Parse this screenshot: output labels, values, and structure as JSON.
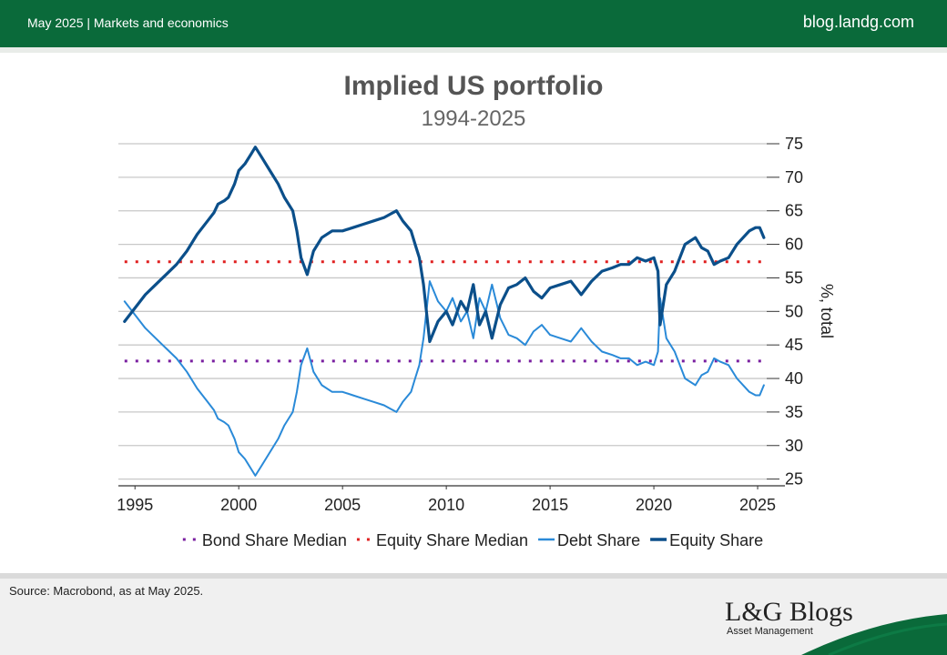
{
  "header": {
    "date_section": "May 2025 | Markets and economics",
    "site": "blog.landg.com"
  },
  "footer": {
    "source": "Source: Macrobond, as at May 2025.",
    "logo_main": "L&G Blogs",
    "logo_sub": "Asset Management"
  },
  "colors": {
    "brand_green": "#0a6a3a",
    "debt": "#2a8ad8",
    "equity": "#0b4f8a",
    "bond_median": "#7a1fa0",
    "equity_median": "#e02020"
  },
  "chart_data": {
    "type": "line",
    "title": "Implied US portfolio",
    "subtitle": "1994-2025",
    "ylabel": "%, total",
    "xlabel": "",
    "xlim": [
      1994.2,
      2025.7
    ],
    "ylim": [
      24,
      75
    ],
    "xticks": [
      1995,
      2000,
      2005,
      2010,
      2015,
      2020,
      2025
    ],
    "yticks": [
      25,
      30,
      35,
      40,
      45,
      50,
      55,
      60,
      65,
      70,
      75
    ],
    "grid": true,
    "legend_position": "bottom",
    "series": [
      {
        "name": "Bond Share Median",
        "style": "dotted",
        "color": "#7a1fa0",
        "x": [
          1994.5,
          2025.3
        ],
        "y": [
          42.6,
          42.6
        ]
      },
      {
        "name": "Equity Share Median",
        "style": "dotted",
        "color": "#e02020",
        "x": [
          1994.5,
          2025.3
        ],
        "y": [
          57.4,
          57.4
        ]
      },
      {
        "name": "Debt Share",
        "style": "solid",
        "color": "#2a8ad8",
        "x": [
          1994.5,
          1995.0,
          1995.5,
          1996.0,
          1996.5,
          1997.0,
          1997.5,
          1998.0,
          1998.5,
          1998.8,
          1999.0,
          1999.3,
          1999.5,
          1999.8,
          2000.0,
          2000.3,
          2000.6,
          2000.8,
          2001.1,
          2001.5,
          2001.9,
          2002.2,
          2002.6,
          2002.8,
          2003.0,
          2003.3,
          2003.6,
          2004.0,
          2004.5,
          2005.0,
          2005.5,
          2006.0,
          2006.5,
          2007.0,
          2007.3,
          2007.6,
          2007.9,
          2008.3,
          2008.5,
          2008.7,
          2008.9,
          2009.2,
          2009.6,
          2010.0,
          2010.3,
          2010.7,
          2011.0,
          2011.3,
          2011.6,
          2011.9,
          2012.2,
          2012.6,
          2013.0,
          2013.4,
          2013.8,
          2014.2,
          2014.6,
          2015.0,
          2015.5,
          2016.0,
          2016.5,
          2017.0,
          2017.5,
          2018.0,
          2018.4,
          2018.8,
          2019.2,
          2019.6,
          2020.0,
          2020.2,
          2020.3,
          2020.6,
          2021.0,
          2021.5,
          2022.0,
          2022.3,
          2022.6,
          2022.9,
          2023.2,
          2023.6,
          2024.0,
          2024.3,
          2024.6,
          2024.9,
          2025.1,
          2025.3
        ],
        "y": [
          51.5,
          49.5,
          47.5,
          46,
          44.5,
          43,
          41,
          38.5,
          36.5,
          35.3,
          34,
          33.5,
          33,
          31,
          29,
          28,
          26.5,
          25.5,
          27,
          29,
          31,
          33,
          35,
          38,
          42,
          44.5,
          41,
          39,
          38,
          38,
          37.5,
          37,
          36.5,
          36,
          35.5,
          35,
          36.5,
          38,
          40,
          42,
          46,
          54.5,
          51.5,
          50,
          52,
          48.5,
          50,
          46,
          52,
          50,
          54,
          49,
          46.5,
          46,
          45,
          47,
          48,
          46.5,
          46,
          45.5,
          47.5,
          45.5,
          44,
          43.5,
          43,
          43,
          42,
          42.5,
          42,
          44,
          52,
          46,
          44,
          40,
          39,
          40.5,
          41,
          43,
          42.5,
          42,
          40,
          39,
          38,
          37.5,
          37.5,
          39
        ]
      },
      {
        "name": "Equity Share",
        "style": "solid",
        "color": "#0b4f8a",
        "x": [
          1994.5,
          1995.0,
          1995.5,
          1996.0,
          1996.5,
          1997.0,
          1997.5,
          1998.0,
          1998.5,
          1998.8,
          1999.0,
          1999.3,
          1999.5,
          1999.8,
          2000.0,
          2000.3,
          2000.6,
          2000.8,
          2001.1,
          2001.5,
          2001.9,
          2002.2,
          2002.6,
          2002.8,
          2003.0,
          2003.3,
          2003.6,
          2004.0,
          2004.5,
          2005.0,
          2005.5,
          2006.0,
          2006.5,
          2007.0,
          2007.3,
          2007.6,
          2007.9,
          2008.3,
          2008.5,
          2008.7,
          2008.9,
          2009.2,
          2009.6,
          2010.0,
          2010.3,
          2010.7,
          2011.0,
          2011.3,
          2011.6,
          2011.9,
          2012.2,
          2012.6,
          2013.0,
          2013.4,
          2013.8,
          2014.2,
          2014.6,
          2015.0,
          2015.5,
          2016.0,
          2016.5,
          2017.0,
          2017.5,
          2018.0,
          2018.4,
          2018.8,
          2019.2,
          2019.6,
          2020.0,
          2020.2,
          2020.3,
          2020.6,
          2021.0,
          2021.5,
          2022.0,
          2022.3,
          2022.6,
          2022.9,
          2023.2,
          2023.6,
          2024.0,
          2024.3,
          2024.6,
          2024.9,
          2025.1,
          2025.3
        ],
        "y": [
          48.5,
          50.5,
          52.5,
          54,
          55.5,
          57,
          59,
          61.5,
          63.5,
          64.7,
          66,
          66.5,
          67,
          69,
          71,
          72,
          73.5,
          74.5,
          73,
          71,
          69,
          67,
          65,
          62,
          58,
          55.5,
          59,
          61,
          62,
          62,
          62.5,
          63,
          63.5,
          64,
          64.5,
          65,
          63.5,
          62,
          60,
          58,
          54,
          45.5,
          48.5,
          50,
          48,
          51.5,
          50,
          54,
          48,
          50,
          46,
          51,
          53.5,
          54,
          55,
          53,
          52,
          53.5,
          54,
          54.5,
          52.5,
          54.5,
          56,
          56.5,
          57,
          57,
          58,
          57.5,
          58,
          56,
          48,
          54,
          56,
          60,
          61,
          59.5,
          59,
          57,
          57.5,
          58,
          60,
          61,
          62,
          62.5,
          62.5,
          61
        ]
      }
    ]
  }
}
